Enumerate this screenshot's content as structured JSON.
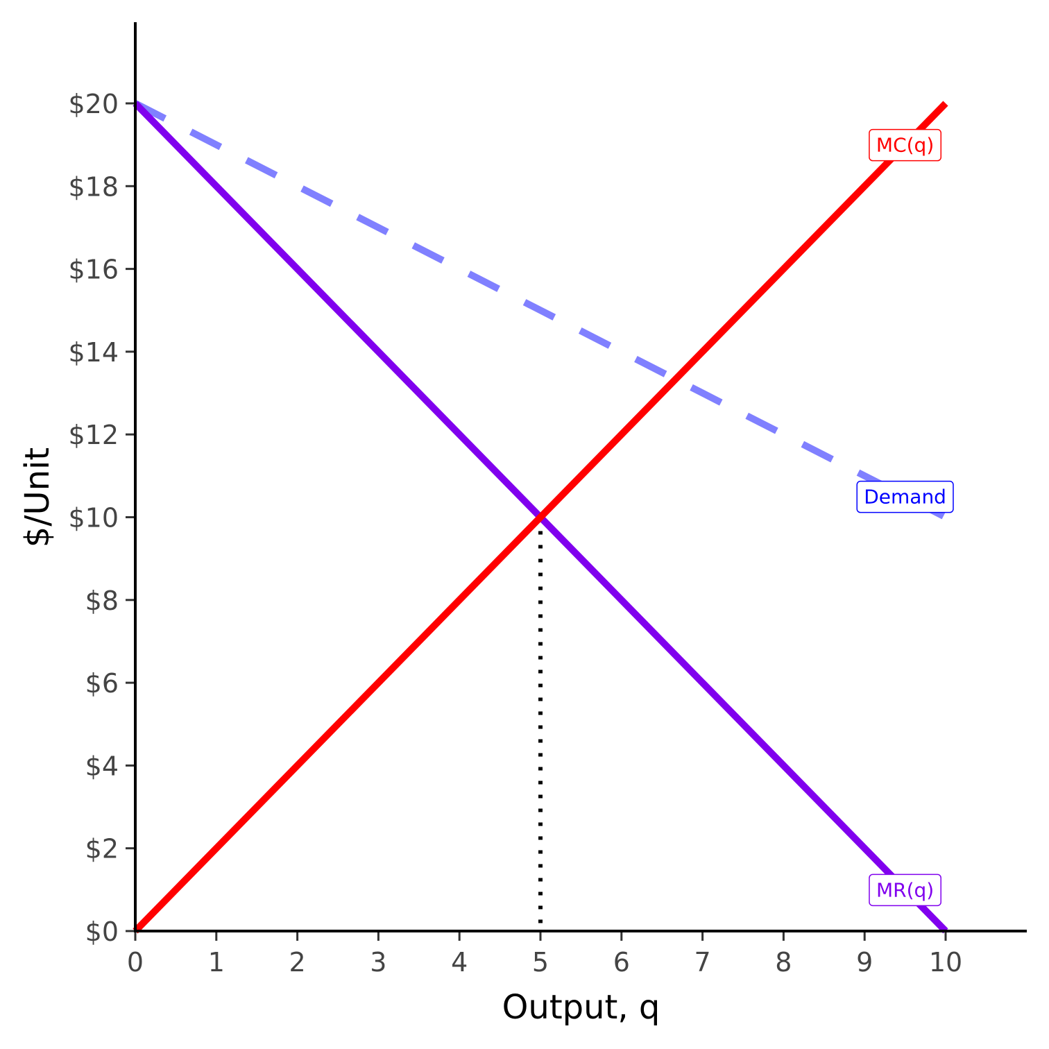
{
  "chart_data": {
    "type": "line",
    "title": "",
    "xlabel": "Output, q",
    "ylabel": "$/Unit",
    "xlim": [
      0,
      11
    ],
    "ylim": [
      0,
      22
    ],
    "x_ticks": [
      0,
      1,
      2,
      3,
      4,
      5,
      6,
      7,
      8,
      9,
      10
    ],
    "x_tick_labels": [
      "0",
      "1",
      "2",
      "3",
      "4",
      "5",
      "6",
      "7",
      "8",
      "9",
      "10"
    ],
    "y_ticks": [
      0,
      2,
      4,
      6,
      8,
      10,
      12,
      14,
      16,
      18,
      20
    ],
    "y_tick_labels": [
      "$0",
      "$2",
      "$4",
      "$6",
      "$8",
      "$10",
      "$12",
      "$14",
      "$16",
      "$18",
      "$20"
    ],
    "grid": false,
    "legend": "none",
    "series": [
      {
        "name": "Demand",
        "x": [
          0,
          10
        ],
        "y": [
          20,
          10
        ],
        "color": "#8080ff",
        "label_color": "#0000ff",
        "style": "dashed",
        "label_at": [
          9.5,
          10.5
        ]
      },
      {
        "name": "MR(q)",
        "x": [
          0,
          10
        ],
        "y": [
          20,
          0
        ],
        "color": "#8000ee",
        "label_color": "#8000ee",
        "style": "solid",
        "label_at": [
          9.5,
          1
        ]
      },
      {
        "name": "MC(q)",
        "x": [
          0,
          10
        ],
        "y": [
          0,
          20
        ],
        "color": "#ff0000",
        "label_color": "#ff0000",
        "style": "solid",
        "label_at": [
          9.5,
          19
        ]
      }
    ],
    "annotations": [
      {
        "type": "vertical-dotted-line",
        "x": 5,
        "y_from": 0,
        "y_to": 10,
        "color": "#000000"
      }
    ]
  }
}
